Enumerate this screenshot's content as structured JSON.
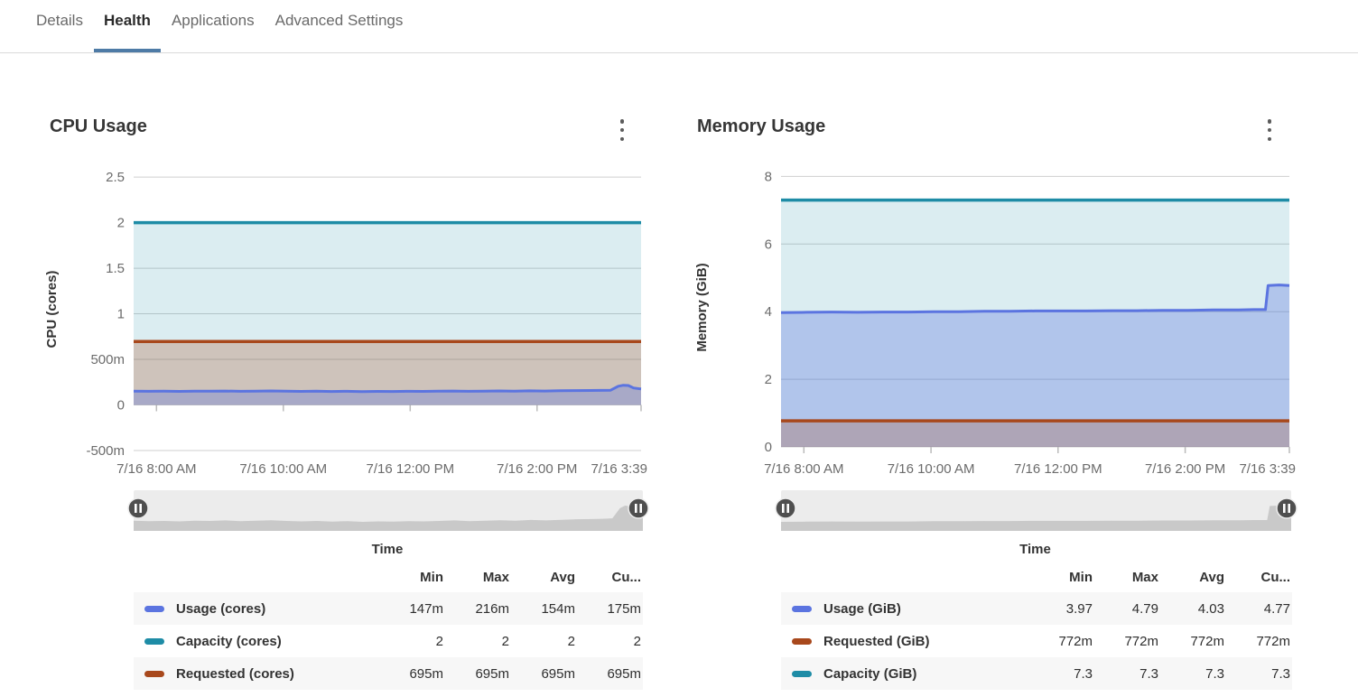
{
  "theme": {
    "accent": "#4e7ba6",
    "gridline": "#cfcfcf",
    "axis_text": "#6b6b6b",
    "slider_track": "#ececec",
    "slider_profile": "#c9c9c9",
    "icons": {
      "chart_menu": "kebab-menu-icon",
      "slider_handle": "pause-icon"
    }
  },
  "tabs": {
    "items": [
      {
        "label": "Details",
        "active": false
      },
      {
        "label": "Health",
        "active": true
      },
      {
        "label": "Applications",
        "active": false
      },
      {
        "label": "Advanced Settings",
        "active": false
      }
    ]
  },
  "chart_data": [
    {
      "id": "cpu",
      "type": "area",
      "title": "CPU Usage",
      "y_axis_title": "CPU (cores)",
      "x_axis_title": "Time",
      "ylim": [
        -0.5,
        2.6
      ],
      "y_ticks": [
        {
          "v": 2.5,
          "label": "2.5"
        },
        {
          "v": 2,
          "label": "2"
        },
        {
          "v": 1.5,
          "label": "1.5"
        },
        {
          "v": 1,
          "label": "1"
        },
        {
          "v": 0.5,
          "label": "500m"
        },
        {
          "v": 0,
          "label": "0"
        },
        {
          "v": -0.5,
          "label": "-500m"
        }
      ],
      "x_ticks": [
        {
          "pos": 0.045,
          "label": "7/16 8:00 AM"
        },
        {
          "pos": 0.295,
          "label": "7/16 10:00 AM"
        },
        {
          "pos": 0.545,
          "label": "7/16 12:00 PM"
        },
        {
          "pos": 0.795,
          "label": "7/16 2:00 PM"
        },
        {
          "pos": 1.0,
          "label": "7/16 3:39",
          "clip": true
        }
      ],
      "series": [
        {
          "name": "Capacity (cores)",
          "color": "#1e8ca6",
          "width": 3.5,
          "fill_opacity": 0.16,
          "points": [
            [
              0,
              2
            ],
            [
              1,
              2
            ]
          ]
        },
        {
          "name": "Requested (cores)",
          "color": "#a8481c",
          "width": 3.5,
          "fill_opacity": 0.25,
          "points": [
            [
              0,
              0.695
            ],
            [
              1,
              0.695
            ]
          ]
        },
        {
          "name": "Usage (cores)",
          "color": "#5b74e0",
          "width": 3,
          "fill_opacity": 0.33,
          "slider_profile": true,
          "points": [
            [
              0,
              0.152
            ],
            [
              0.03,
              0.15
            ],
            [
              0.06,
              0.151
            ],
            [
              0.09,
              0.149
            ],
            [
              0.12,
              0.152
            ],
            [
              0.15,
              0.151
            ],
            [
              0.18,
              0.153
            ],
            [
              0.21,
              0.15
            ],
            [
              0.24,
              0.152
            ],
            [
              0.27,
              0.154
            ],
            [
              0.3,
              0.151
            ],
            [
              0.33,
              0.149
            ],
            [
              0.36,
              0.151
            ],
            [
              0.39,
              0.148
            ],
            [
              0.42,
              0.15
            ],
            [
              0.45,
              0.147
            ],
            [
              0.48,
              0.149
            ],
            [
              0.51,
              0.148
            ],
            [
              0.54,
              0.15
            ],
            [
              0.57,
              0.149
            ],
            [
              0.6,
              0.151
            ],
            [
              0.63,
              0.153
            ],
            [
              0.66,
              0.15
            ],
            [
              0.69,
              0.152
            ],
            [
              0.72,
              0.154
            ],
            [
              0.75,
              0.152
            ],
            [
              0.78,
              0.155
            ],
            [
              0.81,
              0.153
            ],
            [
              0.84,
              0.156
            ],
            [
              0.87,
              0.158
            ],
            [
              0.9,
              0.159
            ],
            [
              0.92,
              0.16
            ],
            [
              0.94,
              0.162
            ],
            [
              0.955,
              0.205
            ],
            [
              0.965,
              0.216
            ],
            [
              0.975,
              0.213
            ],
            [
              0.985,
              0.186
            ],
            [
              1,
              0.175
            ]
          ]
        }
      ],
      "legend": {
        "columns": [
          "Min",
          "Max",
          "Avg",
          "Cu..."
        ],
        "rows": [
          {
            "label": "Usage (cores)",
            "color": "#5b74e0",
            "values": [
              "147m",
              "216m",
              "154m",
              "175m"
            ]
          },
          {
            "label": "Capacity (cores)",
            "color": "#1e8ca6",
            "values": [
              "2",
              "2",
              "2",
              "2"
            ]
          },
          {
            "label": "Requested (cores)",
            "color": "#a8481c",
            "values": [
              "695m",
              "695m",
              "695m",
              "695m"
            ]
          }
        ]
      }
    },
    {
      "id": "memory",
      "type": "area",
      "title": "Memory Usage",
      "y_axis_title": "Memory (GiB)",
      "x_axis_title": "Time",
      "ylim": [
        0,
        8.25
      ],
      "y_ticks": [
        {
          "v": 8,
          "label": "8"
        },
        {
          "v": 6,
          "label": "6"
        },
        {
          "v": 4,
          "label": "4"
        },
        {
          "v": 2,
          "label": "2"
        },
        {
          "v": 0,
          "label": "0"
        }
      ],
      "x_ticks": [
        {
          "pos": 0.045,
          "label": "7/16 8:00 AM"
        },
        {
          "pos": 0.295,
          "label": "7/16 10:00 AM"
        },
        {
          "pos": 0.545,
          "label": "7/16 12:00 PM"
        },
        {
          "pos": 0.795,
          "label": "7/16 2:00 PM"
        },
        {
          "pos": 1.0,
          "label": "7/16 3:39",
          "clip": true
        }
      ],
      "series": [
        {
          "name": "Capacity (GiB)",
          "color": "#1e8ca6",
          "width": 3.5,
          "fill_opacity": 0.16,
          "points": [
            [
              0,
              7.3
            ],
            [
              1,
              7.3
            ]
          ]
        },
        {
          "name": "Usage (GiB)",
          "color": "#5b74e0",
          "width": 3,
          "fill_opacity": 0.33,
          "slider_profile": true,
          "points": [
            [
              0,
              3.97
            ],
            [
              0.05,
              3.98
            ],
            [
              0.1,
              3.99
            ],
            [
              0.15,
              3.98
            ],
            [
              0.2,
              3.99
            ],
            [
              0.25,
              3.99
            ],
            [
              0.3,
              4.0
            ],
            [
              0.35,
              4.0
            ],
            [
              0.4,
              4.01
            ],
            [
              0.45,
              4.01
            ],
            [
              0.5,
              4.02
            ],
            [
              0.55,
              4.02
            ],
            [
              0.6,
              4.02
            ],
            [
              0.65,
              4.03
            ],
            [
              0.7,
              4.03
            ],
            [
              0.75,
              4.04
            ],
            [
              0.8,
              4.04
            ],
            [
              0.85,
              4.05
            ],
            [
              0.9,
              4.05
            ],
            [
              0.93,
              4.06
            ],
            [
              0.953,
              4.06
            ],
            [
              0.958,
              4.77
            ],
            [
              0.98,
              4.79
            ],
            [
              1,
              4.77
            ]
          ]
        },
        {
          "name": "Requested (GiB)",
          "color": "#a8481c",
          "width": 3.5,
          "fill_opacity": 0.25,
          "points": [
            [
              0,
              0.772
            ],
            [
              1,
              0.772
            ]
          ]
        }
      ],
      "legend": {
        "columns": [
          "Min",
          "Max",
          "Avg",
          "Cu..."
        ],
        "rows": [
          {
            "label": "Usage (GiB)",
            "color": "#5b74e0",
            "values": [
              "3.97",
              "4.79",
              "4.03",
              "4.77"
            ]
          },
          {
            "label": "Requested (GiB)",
            "color": "#a8481c",
            "values": [
              "772m",
              "772m",
              "772m",
              "772m"
            ]
          },
          {
            "label": "Capacity (GiB)",
            "color": "#1e8ca6",
            "values": [
              "7.3",
              "7.3",
              "7.3",
              "7.3"
            ]
          }
        ]
      }
    }
  ]
}
